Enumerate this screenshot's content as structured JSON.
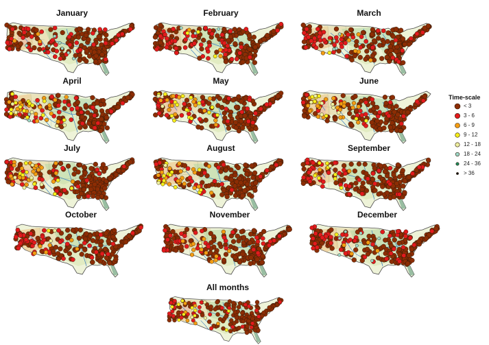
{
  "categories": [
    {
      "label": "< 3",
      "color": "#8c2d04"
    },
    {
      "label": "3 - 6",
      "color": "#e31a1c"
    },
    {
      "label": "6 - 9",
      "color": "#f39c12"
    },
    {
      "label": "9 - 12",
      "color": "#f5ee1b"
    },
    {
      "label": "12 - 18",
      "color": "#eef0a0"
    },
    {
      "label": "18 - 24",
      "color": "#9ed8c8"
    },
    {
      "label": "24 - 36",
      "color": "#1f8a5a"
    },
    {
      "label": "> 36",
      "color": "#111111"
    }
  ],
  "legend": {
    "title": "Time-scale"
  },
  "panels": [
    {
      "title": "January"
    },
    {
      "title": "February"
    },
    {
      "title": "March"
    },
    {
      "title": "April"
    },
    {
      "title": "May"
    },
    {
      "title": "June"
    },
    {
      "title": "July"
    },
    {
      "title": "August"
    },
    {
      "title": "September"
    },
    {
      "title": "October"
    },
    {
      "title": "November"
    },
    {
      "title": "December"
    },
    {
      "title": "All months"
    }
  ],
  "colors": {
    "outline": "#4a4a4a",
    "river": "#3b7fc4",
    "marker_stroke": "#2b1a0a"
  }
}
